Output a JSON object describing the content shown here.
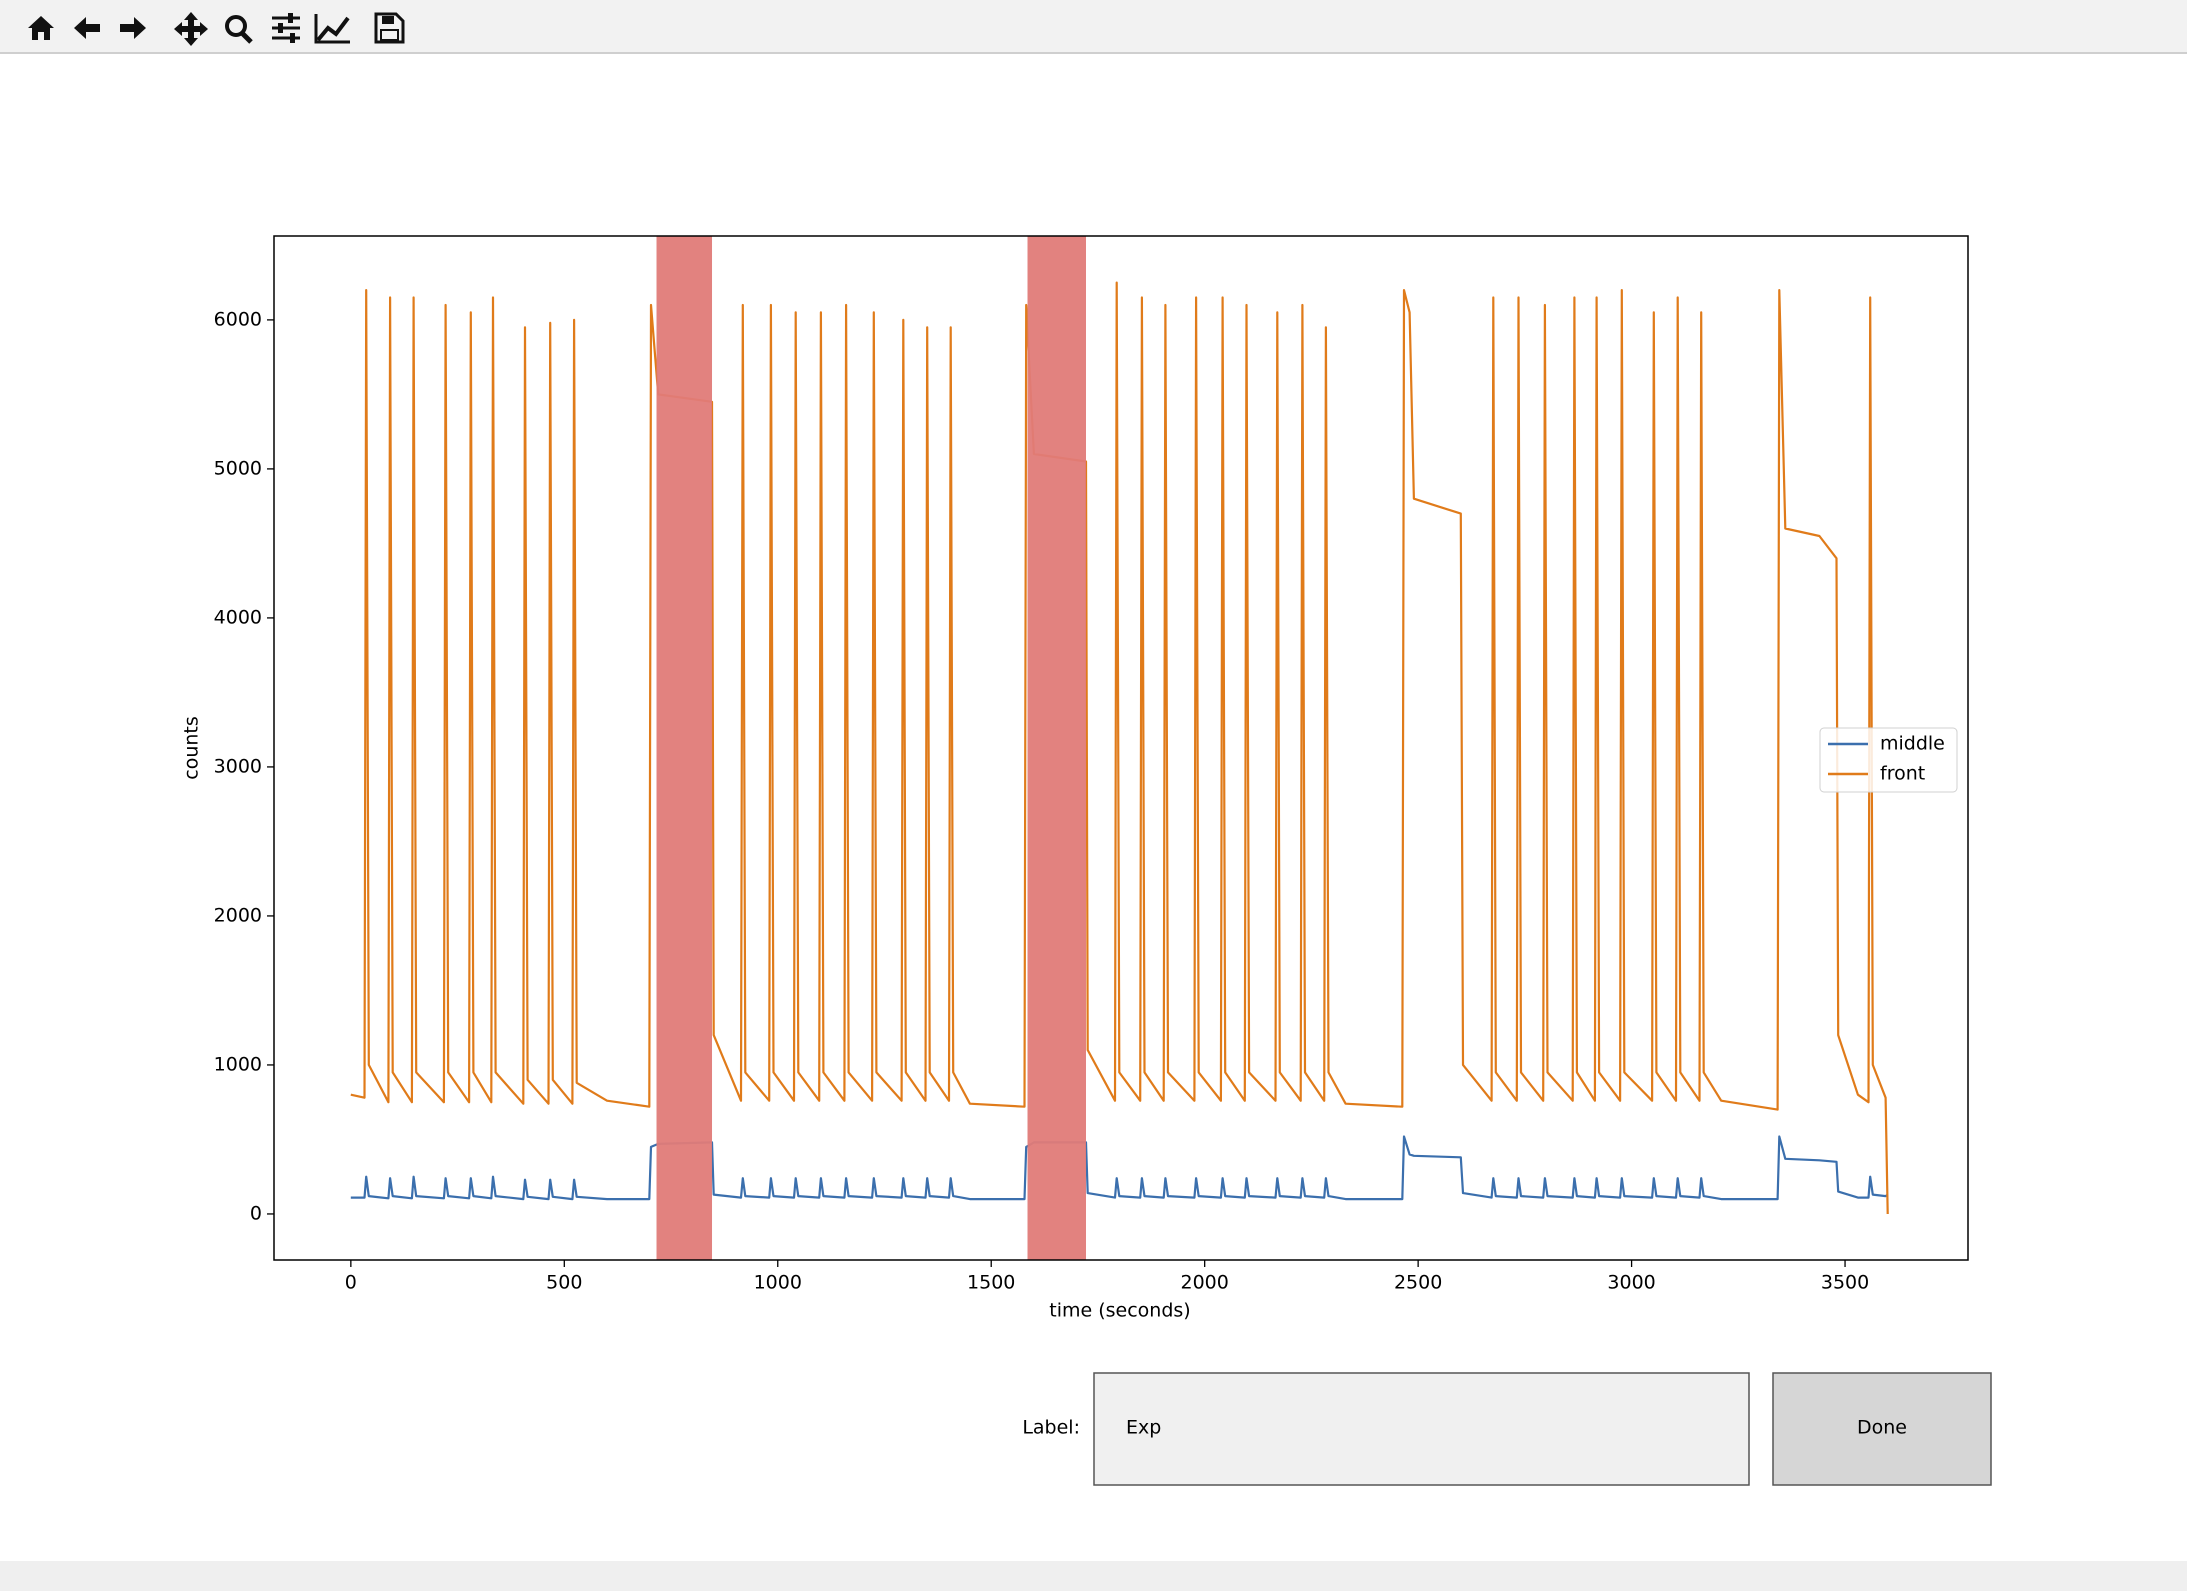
{
  "chart_data": {
    "type": "line",
    "xlabel": "time (seconds)",
    "ylabel": "counts",
    "xlim": [
      -180,
      3788
    ],
    "ylim": [
      -309,
      6563
    ],
    "xticks": [
      0,
      500,
      1000,
      1500,
      2000,
      2500,
      3000,
      3500
    ],
    "yticks": [
      0,
      1000,
      2000,
      3000,
      4000,
      5000,
      6000
    ],
    "legend": "center right",
    "spans": [
      [
        716,
        846
      ],
      [
        1585,
        1722
      ]
    ],
    "span_color": "#e07b78",
    "x": [
      0,
      32,
      36,
      42,
      88,
      92,
      98,
      143,
      147,
      153,
      218,
      222,
      228,
      277,
      281,
      287,
      329,
      333,
      339,
      404,
      408,
      414,
      463,
      467,
      473,
      519,
      523,
      529,
      600,
      699,
      703,
      720,
      846,
      850,
      914,
      918,
      924,
      980,
      984,
      990,
      1038,
      1042,
      1048,
      1097,
      1101,
      1107,
      1156,
      1160,
      1166,
      1221,
      1225,
      1231,
      1290,
      1294,
      1300,
      1346,
      1350,
      1356,
      1401,
      1405,
      1411,
      1450,
      1578,
      1582,
      1600,
      1722,
      1726,
      1790,
      1794,
      1800,
      1849,
      1853,
      1859,
      1904,
      1908,
      1914,
      1976,
      1980,
      1986,
      2038,
      2042,
      2048,
      2094,
      2098,
      2104,
      2166,
      2170,
      2176,
      2225,
      2229,
      2235,
      2280,
      2284,
      2290,
      2330,
      2463,
      2467,
      2480,
      2490,
      2600,
      2605,
      2672,
      2676,
      2682,
      2731,
      2735,
      2741,
      2793,
      2797,
      2803,
      2862,
      2866,
      2872,
      2914,
      2918,
      2924,
      2973,
      2977,
      2983,
      3048,
      3052,
      3058,
      3104,
      3108,
      3114,
      3159,
      3163,
      3169,
      3210,
      3342,
      3346,
      3360,
      3440,
      3480,
      3484,
      3530,
      3555,
      3559,
      3565,
      3595,
      3600
    ],
    "series": [
      {
        "name": "middle",
        "color": "#3b6fad",
        "values": [
          110,
          110,
          250,
          120,
          105,
          240,
          120,
          105,
          250,
          120,
          105,
          240,
          120,
          105,
          240,
          120,
          105,
          250,
          120,
          100,
          230,
          115,
          100,
          230,
          115,
          100,
          230,
          115,
          100,
          100,
          450,
          470,
          480,
          130,
          110,
          240,
          120,
          110,
          240,
          120,
          110,
          240,
          120,
          110,
          240,
          120,
          110,
          240,
          120,
          110,
          240,
          120,
          110,
          240,
          120,
          110,
          240,
          120,
          110,
          240,
          120,
          100,
          100,
          450,
          480,
          480,
          140,
          110,
          240,
          120,
          110,
          240,
          120,
          110,
          240,
          120,
          110,
          240,
          120,
          110,
          240,
          120,
          110,
          240,
          120,
          110,
          240,
          120,
          110,
          240,
          120,
          110,
          240,
          120,
          100,
          100,
          520,
          400,
          390,
          380,
          140,
          110,
          240,
          120,
          110,
          240,
          120,
          110,
          240,
          120,
          110,
          240,
          120,
          110,
          240,
          120,
          110,
          240,
          120,
          110,
          240,
          120,
          110,
          240,
          120,
          110,
          240,
          120,
          100,
          100,
          520,
          370,
          360,
          350,
          150,
          110,
          110,
          250,
          130,
          120,
          130
        ]
      },
      {
        "name": "front",
        "color": "#e07b1a",
        "values": [
          800,
          780,
          6200,
          1000,
          750,
          6150,
          950,
          750,
          6150,
          950,
          750,
          6100,
          950,
          750,
          6050,
          950,
          750,
          6150,
          950,
          740,
          5950,
          900,
          740,
          5980,
          900,
          740,
          6000,
          880,
          760,
          720,
          6100,
          5500,
          5450,
          1200,
          760,
          6100,
          950,
          760,
          6100,
          950,
          760,
          6050,
          950,
          760,
          6050,
          950,
          760,
          6100,
          950,
          760,
          6050,
          950,
          760,
          6000,
          950,
          760,
          5950,
          950,
          760,
          5950,
          950,
          740,
          720,
          6100,
          5100,
          5050,
          1100,
          760,
          6250,
          950,
          760,
          6150,
          950,
          760,
          6100,
          950,
          760,
          6150,
          950,
          760,
          6150,
          950,
          760,
          6100,
          950,
          760,
          6050,
          950,
          760,
          6100,
          950,
          760,
          5950,
          950,
          740,
          720,
          6200,
          6050,
          4800,
          4700,
          1000,
          760,
          6150,
          950,
          760,
          6150,
          950,
          760,
          6100,
          950,
          760,
          6150,
          950,
          760,
          6150,
          950,
          760,
          6200,
          950,
          760,
          6050,
          950,
          760,
          6150,
          950,
          760,
          6050,
          950,
          760,
          700,
          6200,
          4600,
          4550,
          4400,
          1200,
          800,
          750,
          6150,
          1000,
          780,
          0
        ]
      }
    ]
  },
  "ui": {
    "label": "Label:",
    "textbox_value": "Exp",
    "button": "Done"
  }
}
